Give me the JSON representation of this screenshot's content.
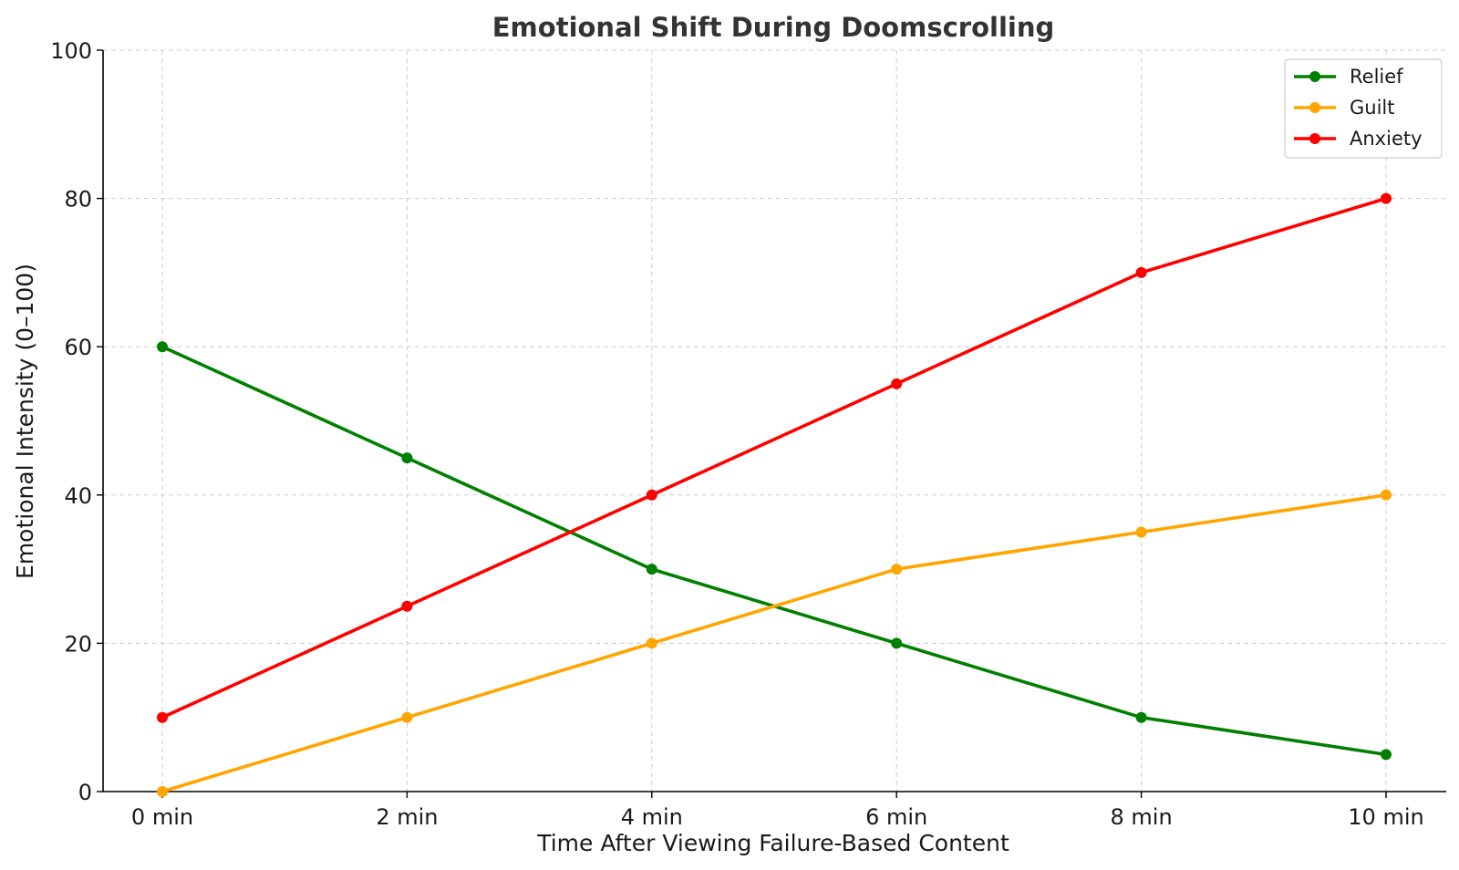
{
  "chart_data": {
    "type": "line",
    "title": "Emotional Shift During Doomscrolling",
    "xlabel": "Time After Viewing Failure-Based Content",
    "ylabel": "Emotional Intensity (0–100)",
    "categories": [
      "0 min",
      "2 min",
      "4 min",
      "6 min",
      "8 min",
      "10 min"
    ],
    "ylim": [
      0,
      100
    ],
    "yticks": [
      0,
      20,
      40,
      60,
      80,
      100
    ],
    "grid": true,
    "legend_position": "top-right",
    "series": [
      {
        "name": "Relief",
        "color": "#008000",
        "values": [
          60,
          45,
          30,
          20,
          10,
          5
        ]
      },
      {
        "name": "Guilt",
        "color": "#FFA500",
        "values": [
          0,
          10,
          20,
          30,
          35,
          40
        ]
      },
      {
        "name": "Anxiety",
        "color": "#FF0000",
        "values": [
          10,
          25,
          40,
          55,
          70,
          80
        ]
      }
    ]
  }
}
